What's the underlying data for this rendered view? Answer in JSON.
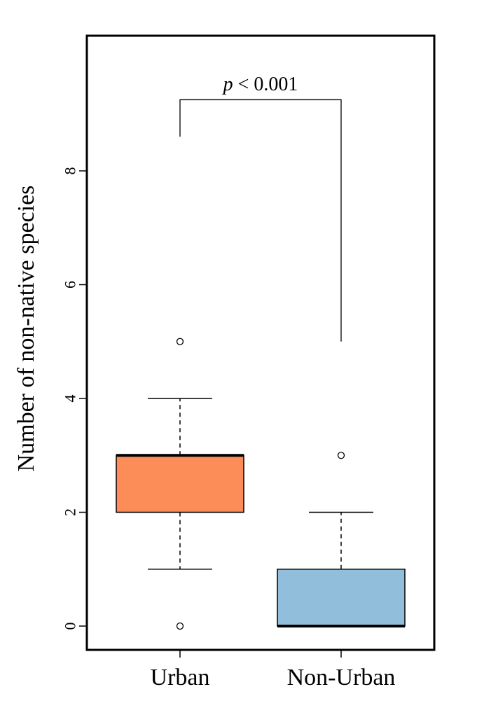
{
  "chart_data": {
    "type": "boxplot",
    "title": "",
    "xlabel": "",
    "ylabel": "Number of non-native species",
    "ylim": [
      -0.4,
      10.4
    ],
    "yticks": [
      0,
      2,
      4,
      6,
      8
    ],
    "categories": [
      "Urban",
      "Non-Urban"
    ],
    "boxes": [
      {
        "category": "Urban",
        "whisker_low": 1,
        "q1": 2,
        "median": 3,
        "q3": 3,
        "whisker_high": 4,
        "outliers": [
          0,
          5
        ],
        "color": "#FC8D59"
      },
      {
        "category": "Non-Urban",
        "whisker_low": 0,
        "q1": 0,
        "median": 0,
        "q3": 1,
        "whisker_high": 2,
        "outliers": [
          3
        ],
        "color": "#91BFDB"
      }
    ],
    "significance": {
      "prefix": "p",
      "text": " < 0.001",
      "bracket_y": 9.25,
      "left_drop_y": 8.6,
      "right_drop_y": 5.0
    },
    "grid": false,
    "legend": "none"
  }
}
